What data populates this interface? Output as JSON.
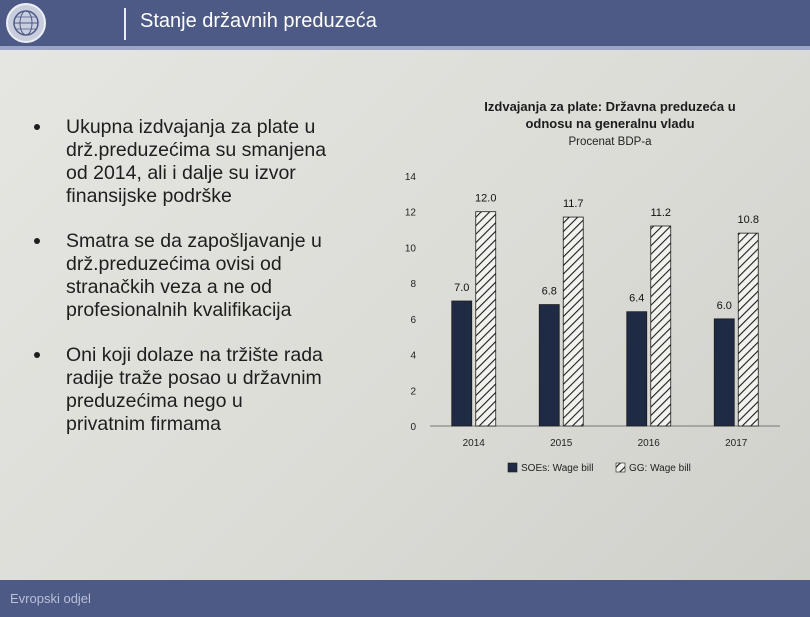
{
  "slide": {
    "title": "Stanje državnih preduzeća",
    "footer": "Evropski odjel",
    "bullets": [
      "Ukupna izdvajanja za plate u\ndrž.preduzećima su smanjena\nod 2014, ali i dalje su izvor\nfinansijske podrške",
      "Smatra se da zapošljavanje u\ndrž.preduzećima ovisi od\nstranačkih veza a ne od\nprofesionalnih kvalifikacija",
      "Oni koji dolaze na tržište rada\nradije traže posao u državnim\npreduzećima nego u\nprivatnim firmama"
    ],
    "colors": {
      "header": "#4d5a86",
      "soe_bar": "#1f2a44"
    }
  },
  "chart_data": {
    "type": "bar",
    "title": "Izdvajanja za plate: Državna preduzeća u odnosu na generalnu vladu",
    "title_lines": [
      "Izdvajanja za plate: Državna preduzeća u",
      "odnosu na generalnu vladu"
    ],
    "subtitle": "Procenat BDP-a",
    "categories": [
      "2014",
      "2015",
      "2016",
      "2017"
    ],
    "series": [
      {
        "name": "SOEs: Wage bill",
        "values": [
          7.0,
          6.8,
          6.4,
          6.0
        ],
        "labels": [
          "7.0",
          "6.8",
          "6.4",
          "6.0"
        ],
        "pattern": "solid"
      },
      {
        "name": "GG: Wage bill",
        "values": [
          12.0,
          11.7,
          11.2,
          10.8
        ],
        "labels": [
          "12.0",
          "11.7",
          "11.2",
          "10.8"
        ],
        "pattern": "hatched"
      }
    ],
    "ylim": [
      0,
      14
    ],
    "yticks": [
      "0",
      "2",
      "4",
      "6",
      "8",
      "10",
      "12",
      "14"
    ],
    "grid": false,
    "legend": "bottom"
  }
}
